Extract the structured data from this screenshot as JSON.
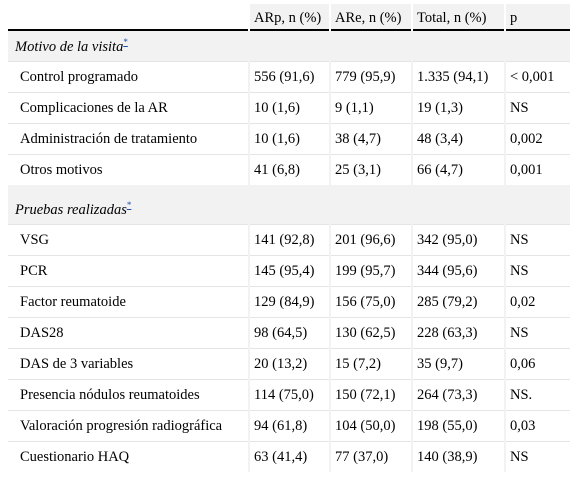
{
  "table": {
    "headers": [
      "",
      "ARp, n (%)",
      "ARe, n (%)",
      "Total, n (%)",
      "p"
    ],
    "sections": [
      {
        "title": "Motivo de la visita",
        "marker": "*",
        "rows": [
          [
            "Control programado",
            "556 (91,6)",
            "779 (95,9)",
            "1.335 (94,1)",
            "< 0,001"
          ],
          [
            "Complicaciones de la AR",
            "10 (1,6)",
            "9 (1,1)",
            "19 (1,3)",
            "NS"
          ],
          [
            "Administración de tratamiento",
            "10 (1,6)",
            "38 (4,7)",
            "48 (3,4)",
            "0,002"
          ],
          [
            "Otros motivos",
            "41 (6,8)",
            "25 (3,1)",
            "66 (4,7)",
            "0,001"
          ]
        ]
      },
      {
        "title": "Pruebas realizadas",
        "marker": "*",
        "rows": [
          [
            "VSG",
            "141 (92,8)",
            "201 (96,6)",
            "342 (95,0)",
            "NS"
          ],
          [
            "PCR",
            "145 (95,4)",
            "199 (95,7)",
            "344 (95,6)",
            "NS"
          ],
          [
            "Factor reumatoide",
            "129 (84,9)",
            "156 (75,0)",
            "285 (79,2)",
            "0,02"
          ],
          [
            "DAS28",
            "98 (64,5)",
            "130 (62,5)",
            "228 (63,3)",
            "NS"
          ],
          [
            "DAS de 3 variables",
            "20 (13,2)",
            "15 (7,2)",
            "35 (9,7)",
            "0,06"
          ],
          [
            "Presencia nódulos reumatoides",
            "114 (75,0)",
            "150 (72,1)",
            "264 (73,3)",
            "NS."
          ],
          [
            "Valoración progresión radiográfica",
            "94 (61,8)",
            "104 (50,0)",
            "198 (55,0)",
            "0,03"
          ],
          [
            "Cuestionario HAQ",
            "63 (41,4)",
            "77 (37,0)",
            "140 (38,9)",
            "NS"
          ]
        ]
      }
    ]
  }
}
